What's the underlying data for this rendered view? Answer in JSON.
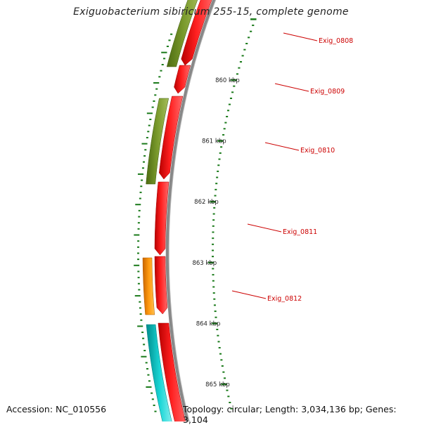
{
  "title": "Exiguobacterium sibiricum 255-15, complete genome",
  "accession_text": "Accession: NC_010556",
  "summary_text": "Topology: circular; Length: 3,034,136 bp; Genes: 3,104",
  "colors": {
    "backbone": "#888888",
    "tick": "#1a7a1a",
    "gene_label": "#cc0000",
    "gene_forward": "#ff0000",
    "feature_green": "#6b8e23",
    "feature_orange": "#ff8c00",
    "feature_cyan": "#00cccc"
  },
  "axis": {
    "unit": "kbp",
    "major_ticks": [
      {
        "label": "860 kbp",
        "kbp": 860
      },
      {
        "label": "861 kbp",
        "kbp": 861
      },
      {
        "label": "862 kbp",
        "kbp": 862
      },
      {
        "label": "863 kbp",
        "kbp": 863
      },
      {
        "label": "864 kbp",
        "kbp": 864
      },
      {
        "label": "865 kbp",
        "kbp": 865
      }
    ]
  },
  "genes": [
    {
      "label": "Exig_0808"
    },
    {
      "label": "Exig_0809"
    },
    {
      "label": "Exig_0810"
    },
    {
      "label": "Exig_0811"
    },
    {
      "label": "Exig_0812"
    }
  ]
}
